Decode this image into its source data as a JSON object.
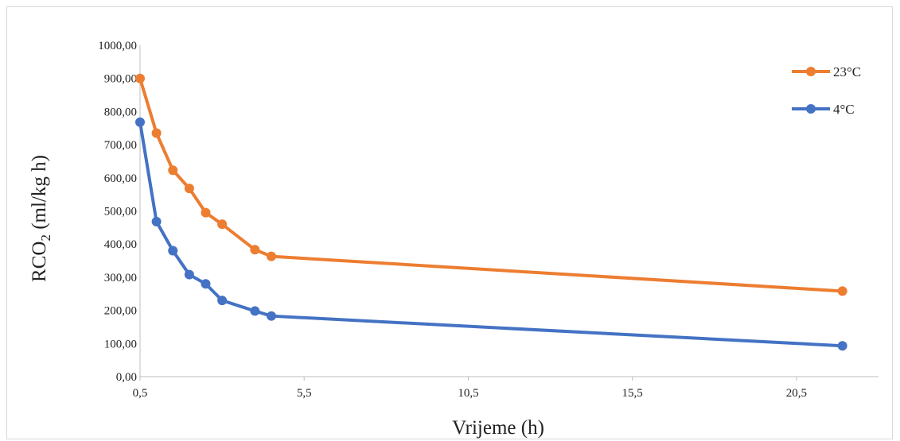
{
  "chart_data": {
    "type": "line",
    "title": "",
    "xlabel": "Vrijeme (h)",
    "ylabel_main": "RCO",
    "ylabel_sub": "2",
    "ylabel_rest": " (ml/kg h)",
    "xlim": [
      0.5,
      23
    ],
    "ylim": [
      0,
      1000
    ],
    "x_ticks": [
      0.5,
      5.5,
      10.5,
      15.5,
      20.5
    ],
    "x_tick_labels": [
      "0,5",
      "5,5",
      "10,5",
      "15,5",
      "20,5"
    ],
    "y_ticks": [
      0,
      100,
      200,
      300,
      400,
      500,
      600,
      700,
      800,
      900,
      1000
    ],
    "y_tick_labels": [
      "0,00",
      "100,00",
      "200,00",
      "300,00",
      "400,00",
      "500,00",
      "600,00",
      "700,00",
      "800,00",
      "900,00",
      "1000,00"
    ],
    "grid": false,
    "legend_position": "top-right",
    "series": [
      {
        "name": "23°C",
        "color": "#ED7D31",
        "x": [
          0.5,
          1.0,
          1.5,
          2.0,
          2.5,
          3.0,
          4.0,
          4.5,
          21.9
        ],
        "y": [
          900,
          735,
          623,
          568,
          495,
          460,
          383,
          363,
          258
        ]
      },
      {
        "name": "4°C",
        "color": "#4472C4",
        "x": [
          0.5,
          1.0,
          1.5,
          2.0,
          2.5,
          3.0,
          4.0,
          4.5,
          21.9
        ],
        "y": [
          768,
          468,
          380,
          308,
          280,
          230,
          198,
          183,
          93
        ]
      }
    ]
  }
}
